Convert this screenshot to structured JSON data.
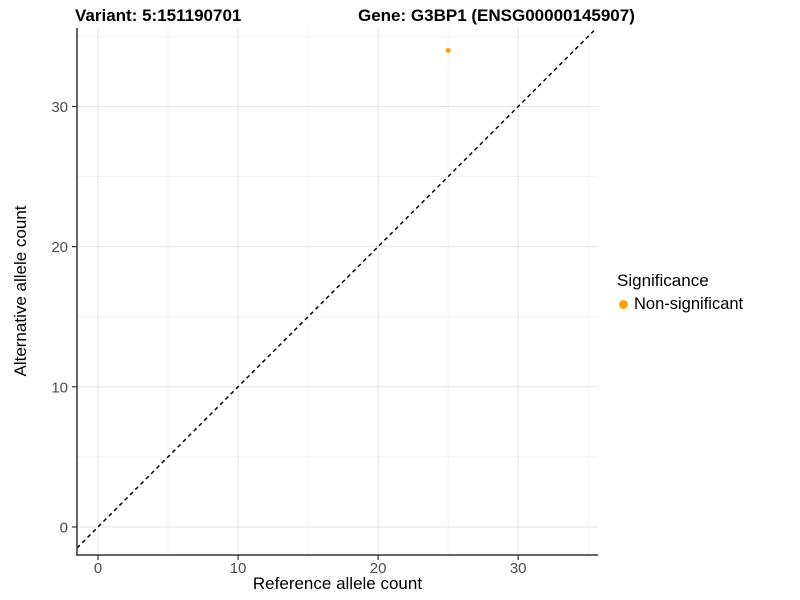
{
  "figure": {
    "title_variant": "Variant: 5:151190701",
    "title_gene": "Gene: G3BP1 (ENSG00000145907)"
  },
  "chart_data": {
    "type": "scatter",
    "titles": [
      "Variant: 5:151190701",
      "Gene: G3BP1 (ENSG00000145907)"
    ],
    "xlabel": "Reference allele count",
    "ylabel": "Alternative allele count",
    "xlim": [
      -1.5,
      35.7
    ],
    "ylim": [
      -2.0,
      35.6
    ],
    "xticks": [
      0,
      10,
      20,
      30
    ],
    "yticks": [
      0,
      10,
      20,
      30
    ],
    "xminor": [
      5,
      15,
      25,
      35
    ],
    "yminor": [
      5,
      15,
      25,
      35
    ],
    "grid": "major and minor gridlines, light gray on white",
    "identity_line": {
      "slope": 1,
      "intercept": 0,
      "style": "dashed",
      "color": "#000000"
    },
    "series": [
      {
        "name": "Non-significant",
        "color": "#FFA500",
        "points": [
          {
            "x": 25,
            "y": 34
          }
        ]
      }
    ],
    "legend": {
      "title": "Significance",
      "position": "right",
      "entries": [
        {
          "label": "Non-significant",
          "color": "#FFA500"
        }
      ]
    }
  },
  "colors": {
    "background": "#FFFFFF",
    "axis_line": "#333333",
    "tick_label": "#4D4D4D",
    "grid_major": "#E6E6E6",
    "grid_minor": "#F2F2F2",
    "point": "#FFA500"
  }
}
